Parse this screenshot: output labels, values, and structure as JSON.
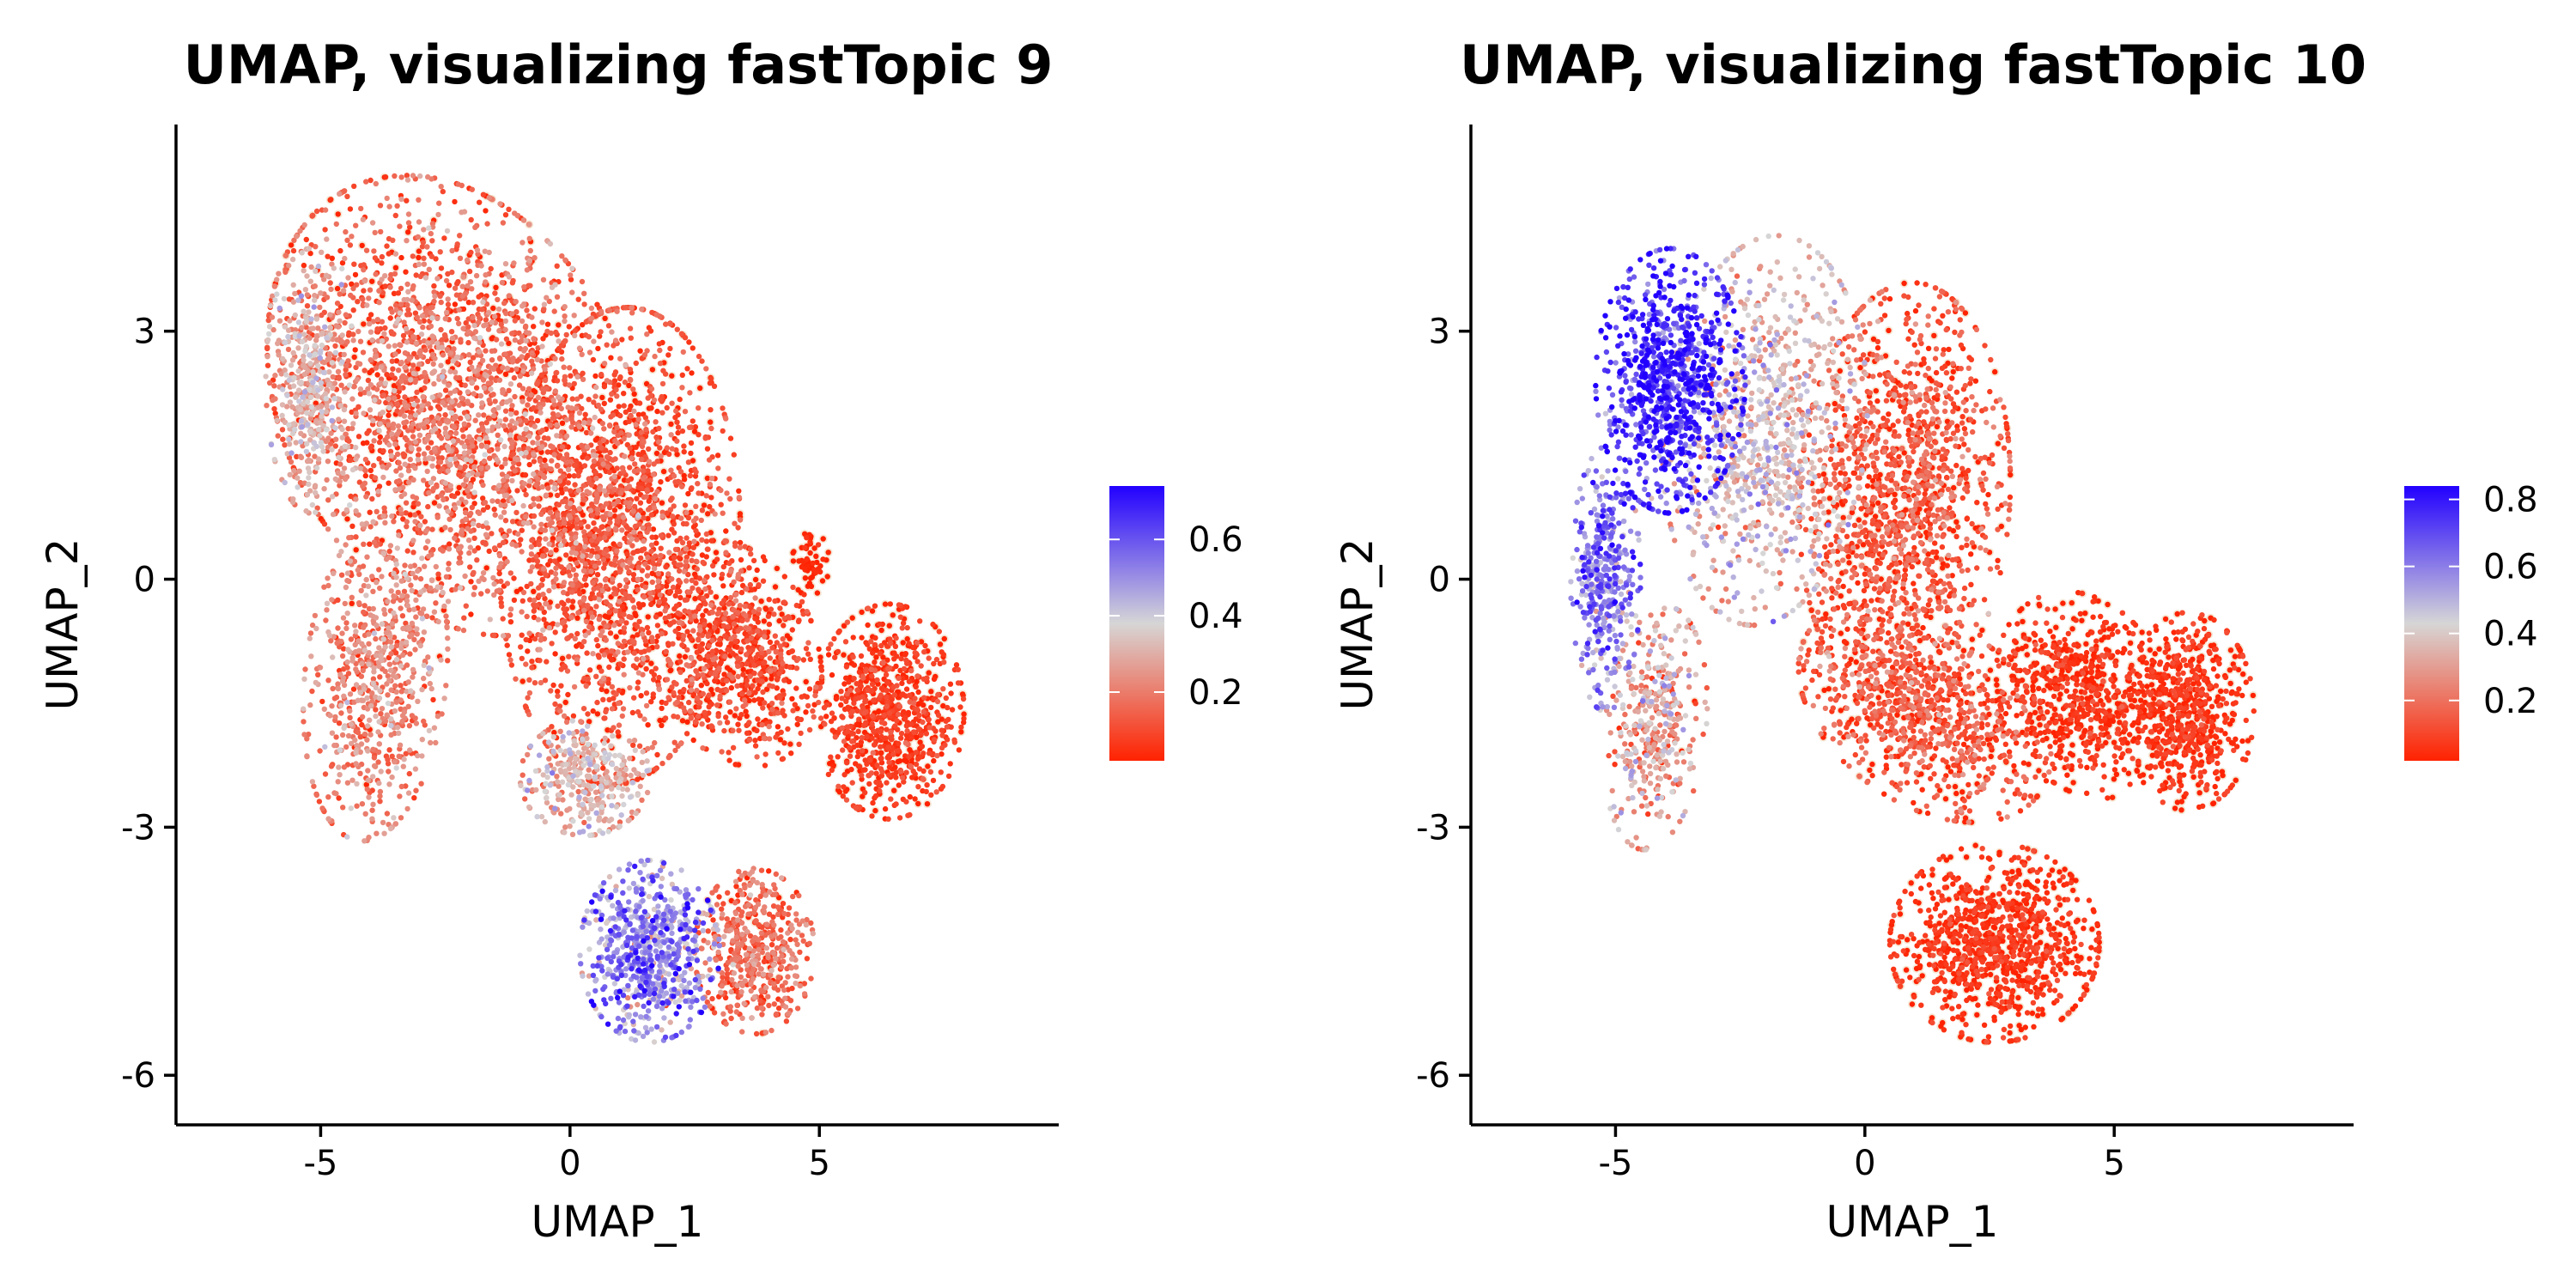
{
  "chart_data": [
    {
      "type": "scatter",
      "title": "UMAP, visualizing fastTopic 9",
      "xlabel": "UMAP_1",
      "ylabel": "UMAP_2",
      "xlim": [
        -7.9,
        9.8
      ],
      "ylim": [
        -6.6,
        5.5
      ],
      "x_ticks": [
        -5,
        0,
        5
      ],
      "x_tick_labels": [
        "-5",
        "0",
        "5"
      ],
      "y_ticks": [
        -6,
        -3,
        0,
        3
      ],
      "y_tick_labels": [
        "-6",
        "-3",
        "0",
        "3"
      ],
      "legend": {
        "placement": "right",
        "range": [
          0.02,
          0.74
        ],
        "ticks": [
          0.2,
          0.4,
          0.6
        ],
        "tick_labels": [
          "0.2",
          "0.4",
          "0.6"
        ]
      },
      "color_scale": {
        "low": "#ff2200",
        "mid": "#d6d6d6",
        "high": "#2200ff"
      },
      "regions": [
        {
          "cx": -2.3,
          "cy": 2.1,
          "rx": 3.9,
          "ry": 2.6,
          "rot": -20,
          "n": 2600,
          "base": 0.15,
          "jit": 0.08
        },
        {
          "cx": 1.0,
          "cy": 0.4,
          "rx": 2.4,
          "ry": 2.9,
          "rot": -10,
          "n": 1800,
          "base": 0.1,
          "jit": 0.06
        },
        {
          "cx": -3.9,
          "cy": -1.2,
          "rx": 1.4,
          "ry": 2.0,
          "rot": -15,
          "n": 700,
          "base": 0.2,
          "jit": 0.08
        },
        {
          "cx": -5.2,
          "cy": 2.4,
          "rx": 0.9,
          "ry": 1.6,
          "rot": 0,
          "n": 400,
          "base": 0.3,
          "jit": 0.08
        },
        {
          "cx": 3.3,
          "cy": -0.9,
          "rx": 1.8,
          "ry": 1.3,
          "rot": -20,
          "n": 800,
          "base": 0.08,
          "jit": 0.05
        },
        {
          "cx": 6.4,
          "cy": -1.6,
          "rx": 1.5,
          "ry": 1.3,
          "rot": 0,
          "n": 800,
          "base": 0.06,
          "jit": 0.04
        },
        {
          "cx": 0.3,
          "cy": -2.4,
          "rx": 1.3,
          "ry": 0.7,
          "rot": 0,
          "n": 350,
          "base": 0.3,
          "jit": 0.08
        },
        {
          "cx": 1.6,
          "cy": -4.5,
          "rx": 1.4,
          "ry": 1.1,
          "rot": 0,
          "n": 700,
          "base": 0.5,
          "jit": 0.12
        },
        {
          "cx": 3.7,
          "cy": -4.5,
          "rx": 1.2,
          "ry": 1.0,
          "rot": 0,
          "n": 500,
          "base": 0.15,
          "jit": 0.07
        },
        {
          "cx": 4.8,
          "cy": 0.2,
          "rx": 0.4,
          "ry": 0.4,
          "rot": 0,
          "n": 60,
          "base": 0.02,
          "jit": 0.02
        }
      ]
    },
    {
      "type": "scatter",
      "title": "UMAP, visualizing fastTopic 10",
      "xlabel": "UMAP_1",
      "ylabel": "UMAP_2",
      "xlim": [
        -7.9,
        9.8
      ],
      "ylim": [
        -6.6,
        5.5
      ],
      "x_ticks": [
        -5,
        0,
        5
      ],
      "x_tick_labels": [
        "-5",
        "0",
        "5"
      ],
      "y_ticks": [
        -6,
        -3,
        0,
        3
      ],
      "y_tick_labels": [
        "-6",
        "-3",
        "0",
        "3"
      ],
      "legend": {
        "placement": "right",
        "range": [
          0.02,
          0.84
        ],
        "ticks": [
          0.2,
          0.4,
          0.6,
          0.8
        ],
        "tick_labels": [
          "0.2",
          "0.4",
          "0.6",
          "0.8"
        ]
      },
      "color_scale": {
        "low": "#ff2200",
        "mid": "#d6d6d6",
        "high": "#2200ff"
      },
      "regions": [
        {
          "cx": -3.9,
          "cy": 2.4,
          "rx": 1.5,
          "ry": 1.6,
          "rot": 0,
          "n": 900,
          "base": 0.75,
          "jit": 0.12
        },
        {
          "cx": -5.2,
          "cy": 0.0,
          "rx": 0.7,
          "ry": 1.6,
          "rot": 0,
          "n": 400,
          "base": 0.6,
          "jit": 0.12
        },
        {
          "cx": -2.0,
          "cy": 1.8,
          "rx": 2.0,
          "ry": 2.4,
          "rot": -20,
          "n": 900,
          "base": 0.38,
          "jit": 0.1
        },
        {
          "cx": -4.2,
          "cy": -1.8,
          "rx": 1.0,
          "ry": 1.5,
          "rot": -15,
          "n": 400,
          "base": 0.3,
          "jit": 0.12
        },
        {
          "cx": 0.8,
          "cy": 1.0,
          "rx": 2.1,
          "ry": 2.6,
          "rot": -10,
          "n": 1400,
          "base": 0.12,
          "jit": 0.08
        },
        {
          "cx": 1.2,
          "cy": -1.6,
          "rx": 2.6,
          "ry": 1.2,
          "rot": -15,
          "n": 900,
          "base": 0.12,
          "jit": 0.08
        },
        {
          "cx": 4.4,
          "cy": -1.4,
          "rx": 1.8,
          "ry": 1.2,
          "rot": -15,
          "n": 700,
          "base": 0.05,
          "jit": 0.04
        },
        {
          "cx": 6.5,
          "cy": -1.6,
          "rx": 1.3,
          "ry": 1.2,
          "rot": 0,
          "n": 600,
          "base": 0.05,
          "jit": 0.04
        },
        {
          "cx": 2.6,
          "cy": -4.4,
          "rx": 2.1,
          "ry": 1.2,
          "rot": 0,
          "n": 1000,
          "base": 0.05,
          "jit": 0.04
        }
      ]
    }
  ]
}
